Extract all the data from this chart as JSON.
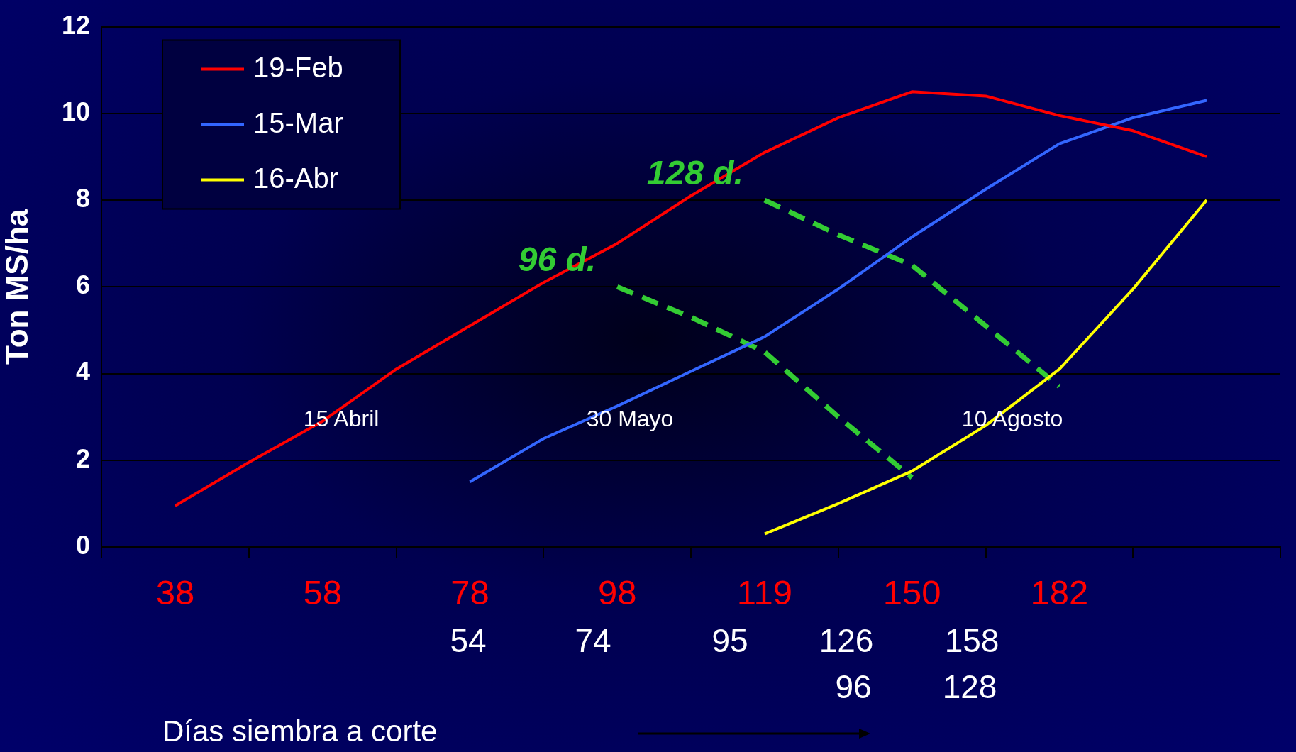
{
  "chart_data": {
    "type": "line",
    "xlabel": "Días siembra a corte",
    "ylabel": "Ton MS/ha",
    "categories": [
      null,
      "38",
      null,
      "58",
      null,
      "78",
      null,
      "98",
      null,
      "119",
      null,
      "150",
      null,
      "182",
      null,
      null,
      null
    ],
    "series": [
      {
        "name": "19-Feb",
        "color": "#ff0000",
        "values": [
          null,
          0.95,
          1.95,
          2.9,
          4.1,
          5.1,
          6.1,
          7.0,
          8.1,
          9.1,
          9.9,
          10.5,
          10.4,
          9.95,
          9.6,
          9.0,
          null
        ]
      },
      {
        "name": "15-Mar",
        "color": "#3366ff",
        "values": [
          null,
          null,
          null,
          null,
          null,
          1.5,
          2.5,
          3.25,
          4.05,
          4.85,
          5.95,
          7.15,
          8.25,
          9.3,
          9.9,
          10.3,
          null
        ]
      },
      {
        "name": "16-Abr",
        "color": "#ffff00",
        "values": [
          null,
          null,
          null,
          null,
          null,
          null,
          null,
          null,
          null,
          0.3,
          1.0,
          1.75,
          2.8,
          4.1,
          5.95,
          8.0,
          null
        ]
      },
      {
        "name": "128 d.",
        "color": "#33cc33",
        "line_style": "dashed",
        "values": [
          null,
          null,
          null,
          null,
          null,
          null,
          null,
          null,
          null,
          8.0,
          7.2,
          6.5,
          5.1,
          3.7,
          null,
          null,
          null
        ]
      },
      {
        "name": "96 d.",
        "color": "#33cc33",
        "line_style": "dashed",
        "values": [
          null,
          null,
          null,
          null,
          null,
          null,
          null,
          6.0,
          5.3,
          4.5,
          3.0,
          1.6,
          null,
          null,
          null,
          null,
          null
        ]
      }
    ],
    "ylim": [
      0,
      12
    ],
    "yticks": [
      0,
      2,
      4,
      6,
      8,
      10,
      12
    ],
    "grid": "y",
    "legend": "top left",
    "annotations": [
      "15 Abril",
      "30 Mayo",
      "10 Agosto",
      "54",
      "74",
      "95",
      "126",
      "158",
      "96",
      "128"
    ]
  }
}
